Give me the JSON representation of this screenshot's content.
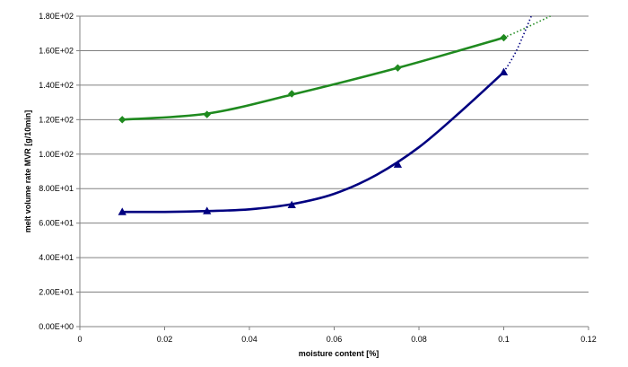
{
  "chart_data": {
    "type": "line",
    "title": "",
    "xlabel": "moisture content [%]",
    "ylabel": "melt volume rate MVR [g/10min]",
    "xlim": [
      0,
      0.12
    ],
    "ylim": [
      0,
      180
    ],
    "x_ticks": [
      0,
      0.02,
      0.04,
      0.06,
      0.08,
      0.1,
      0.12
    ],
    "x_tick_labels": [
      "0",
      "0.02",
      "0.04",
      "0.06",
      "0.08",
      "0.1",
      "0.12"
    ],
    "y_ticks": [
      0,
      20,
      40,
      60,
      80,
      100,
      120,
      140,
      160,
      180
    ],
    "y_tick_labels": [
      "0.00E+00",
      "2.00E+01",
      "4.00E+01",
      "6.00E+01",
      "8.00E+01",
      "1.00E+02",
      "1.20E+02",
      "1.40E+02",
      "1.60E+02",
      "1.80E+02"
    ],
    "grid": {
      "horizontal": true,
      "vertical": false
    },
    "legend": "none",
    "series": [
      {
        "marker": "diamond",
        "color": "#1f8a1f",
        "x": [
          0.01,
          0.03,
          0.05,
          0.075,
          0.1
        ],
        "y": [
          120,
          123,
          135,
          150,
          167.5
        ],
        "trend": {
          "x": [
            0.01,
            0.03,
            0.05,
            0.075,
            0.1
          ],
          "y": [
            120,
            123.5,
            134.5,
            150,
            167.5
          ]
        },
        "extrapolation": {
          "x": [
            0.1,
            0.105,
            0.111
          ],
          "y": [
            167.5,
            173,
            180
          ]
        }
      },
      {
        "marker": "triangle",
        "color": "#000080",
        "x": [
          0.01,
          0.03,
          0.05,
          0.075,
          0.1
        ],
        "y": [
          66.5,
          67,
          70.5,
          94,
          147.5
        ],
        "trend": {
          "x": [
            0.01,
            0.02,
            0.03,
            0.04,
            0.05,
            0.06,
            0.07,
            0.08,
            0.09,
            0.1
          ],
          "y": [
            66.5,
            66.5,
            67,
            68,
            71,
            77,
            88,
            104,
            125,
            147.5
          ]
        },
        "extrapolation": {
          "x": [
            0.1,
            0.103,
            0.1065
          ],
          "y": [
            147.5,
            160,
            180
          ]
        }
      }
    ]
  }
}
